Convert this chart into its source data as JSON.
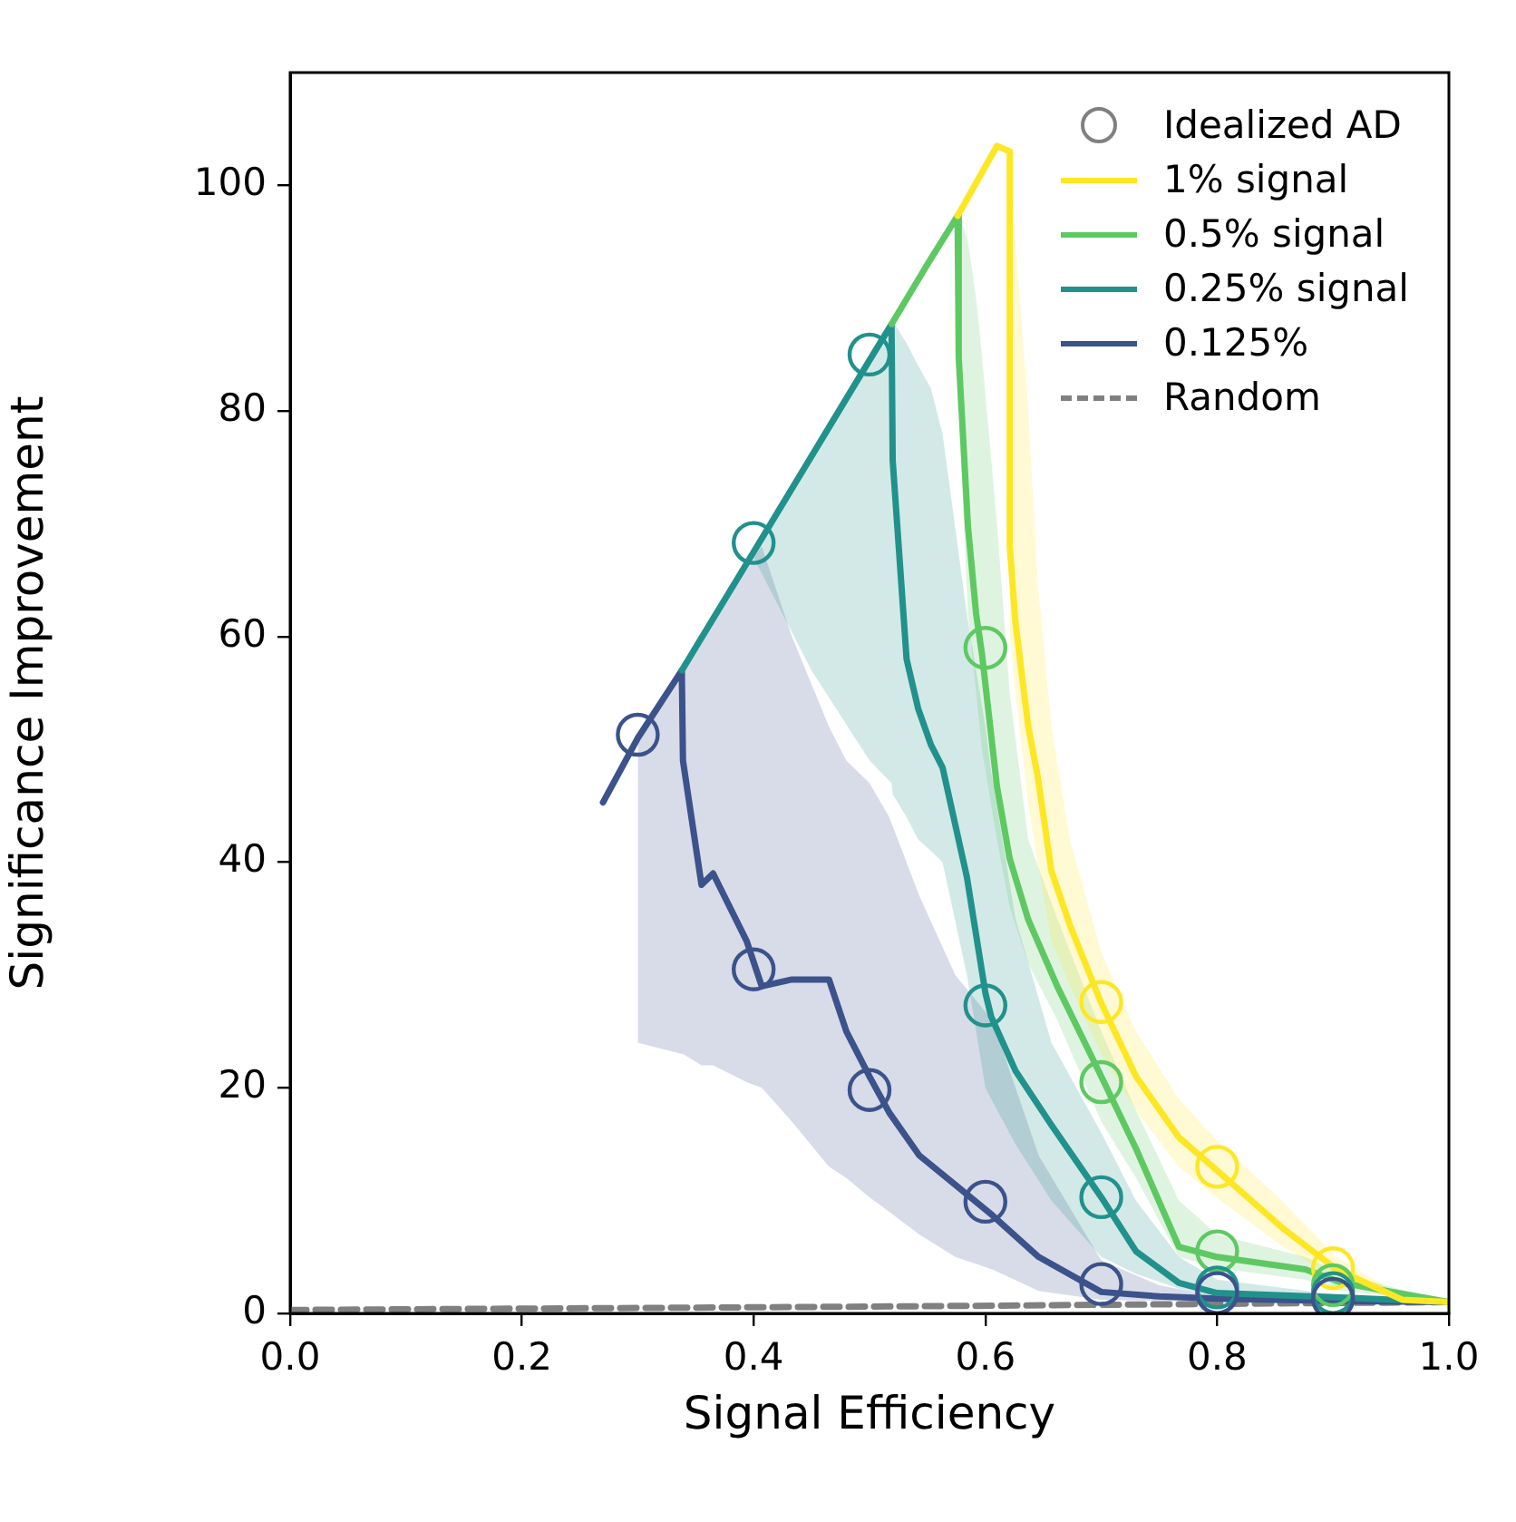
{
  "chart_data": {
    "type": "line",
    "xlabel": "Signal Efficiency",
    "ylabel": "Significance Improvement",
    "xlim": [
      0,
      1
    ],
    "ylim": [
      0,
      110
    ],
    "xticks": [
      {
        "value": 0,
        "label": "0.0"
      },
      {
        "value": 0.2,
        "label": "0.2"
      },
      {
        "value": 0.4,
        "label": "0.4"
      },
      {
        "value": 0.6,
        "label": "0.6"
      },
      {
        "value": 0.8,
        "label": "0.8"
      },
      {
        "value": 1,
        "label": "1.0"
      }
    ],
    "yticks": [
      0,
      20,
      40,
      60,
      80,
      100
    ],
    "grid": false,
    "legend": "top right",
    "annotations": [
      "Idealized AD"
    ],
    "series": [
      {
        "type": "scatter",
        "marker": "circle",
        "color": "#3b528b",
        "x": [
          0.3,
          0.4,
          0.5,
          0.6,
          0.7,
          0.8,
          0.9
        ],
        "values": [
          51.3,
          30.5,
          19.8,
          9.9,
          2.6,
          1.8,
          1.3
        ]
      },
      {
        "type": "scatter",
        "marker": "circle",
        "color": "#21918c",
        "x": [
          0.4,
          0.5,
          0.6,
          0.7,
          0.8,
          0.9
        ],
        "values": [
          68.3,
          85,
          27.3,
          10.3,
          2.3,
          1.8
        ]
      },
      {
        "type": "scatter",
        "marker": "circle",
        "color": "#5ec962",
        "x": [
          0.6,
          0.7,
          0.8,
          0.9
        ],
        "values": [
          59,
          20.5,
          5.5,
          2.5
        ]
      },
      {
        "type": "scatter",
        "marker": "circle",
        "color": "#fde725",
        "x": [
          0.7,
          0.8,
          0.9
        ],
        "values": [
          27.6,
          13,
          4
        ]
      },
      {
        "name": "1% signal",
        "color": "#fde725",
        "x": [
          0.576,
          0.61,
          0.621,
          0.621,
          0.626,
          0.637,
          0.645,
          0.657,
          0.673,
          0.7,
          0.73,
          0.767,
          0.803,
          0.856,
          0.903,
          0.96,
          1.0
        ],
        "values": [
          97.3,
          103.5,
          103,
          68,
          61.2,
          52,
          47.7,
          39.2,
          34.4,
          27.5,
          21,
          15.6,
          12.4,
          7.6,
          3.9,
          1.2,
          1.0
        ],
        "lower": [
          null,
          null,
          null,
          60,
          55,
          45,
          40,
          33,
          29,
          23,
          18,
          13,
          10,
          6,
          3,
          1,
          1
        ],
        "upper": [
          null,
          null,
          null,
          104,
          95,
          80,
          65,
          52,
          42,
          32,
          25,
          19,
          15,
          10,
          5,
          1.5,
          1
        ]
      },
      {
        "name": "0.5% signal",
        "color": "#5ec962",
        "x": [
          0.519,
          0.55,
          0.576,
          0.577,
          0.585,
          0.592,
          0.597,
          0.61,
          0.621,
          0.637,
          0.662,
          0.7,
          0.73,
          0.767,
          0.8,
          0.876,
          0.908,
          1.0
        ],
        "values": [
          87.7,
          93,
          97.3,
          84.7,
          69.7,
          62,
          58.5,
          46.7,
          40.3,
          34.9,
          29,
          21,
          14.6,
          5.9,
          5,
          3.9,
          2.7,
          1.0
        ],
        "lower": [
          null,
          null,
          90,
          80,
          62,
          55,
          50,
          42,
          36,
          31,
          26,
          17,
          12,
          5,
          4,
          3,
          2,
          1
        ],
        "upper": [
          null,
          null,
          98,
          98,
          95,
          90,
          85,
          70,
          55,
          42,
          35,
          25,
          18,
          10,
          7,
          5,
          3.5,
          1
        ]
      },
      {
        "name": "0.25% signal",
        "color": "#21918c",
        "x": [
          0.338,
          0.4,
          0.45,
          0.5,
          0.519,
          0.52,
          0.532,
          0.542,
          0.553,
          0.563,
          0.584,
          0.6,
          0.605,
          0.626,
          0.657,
          0.7,
          0.73,
          0.767,
          0.8,
          0.907,
          1.0
        ],
        "values": [
          57,
          67.5,
          76,
          84.5,
          87.7,
          75.6,
          58,
          53.6,
          50.4,
          48.4,
          38.7,
          28.4,
          26.3,
          21.5,
          16.7,
          10.3,
          5.5,
          2.7,
          1.8,
          1.4,
          1.0
        ],
        "lower": [
          null,
          67,
          57,
          49,
          47,
          46,
          44,
          42,
          41,
          40,
          30,
          20,
          19,
          15,
          10,
          5,
          3.5,
          2.2,
          1.5,
          1.2,
          1
        ],
        "upper": [
          null,
          68,
          76,
          84.5,
          88,
          88,
          86,
          84,
          82,
          78,
          62,
          52,
          48,
          35,
          24,
          16,
          10,
          5,
          3,
          1.6,
          1
        ]
      },
      {
        "name": "0.125%",
        "color": "#3b528b",
        "x": [
          0.27,
          0.3,
          0.338,
          0.339,
          0.355,
          0.365,
          0.394,
          0.407,
          0.433,
          0.465,
          0.48,
          0.5,
          0.517,
          0.543,
          0.574,
          0.606,
          0.646,
          0.7,
          0.75,
          0.8,
          0.9,
          1.0
        ],
        "values": [
          45.3,
          51,
          57,
          49,
          38,
          39,
          33,
          29,
          29.6,
          29.6,
          25,
          21,
          17.8,
          14,
          11.4,
          8.7,
          5,
          1.9,
          1.5,
          1.3,
          1.1,
          1.0
        ],
        "lower": [
          null,
          24,
          23,
          23,
          22,
          22,
          20.5,
          20,
          17,
          13,
          12,
          10.3,
          9,
          7,
          5,
          3.9,
          2,
          1.2,
          1.1,
          1,
          1,
          1
        ],
        "upper": [
          null,
          51,
          57,
          57,
          60,
          62,
          66,
          68,
          60,
          52,
          49,
          47,
          44,
          37,
          30,
          26,
          14,
          4.7,
          2.5,
          1.5,
          1.2,
          1
        ]
      },
      {
        "name": "Random",
        "color": "#808080",
        "line_style": "dashed",
        "x": [
          0,
          0.5,
          1
        ],
        "values": [
          0.3,
          0.6,
          1.0
        ]
      }
    ]
  }
}
